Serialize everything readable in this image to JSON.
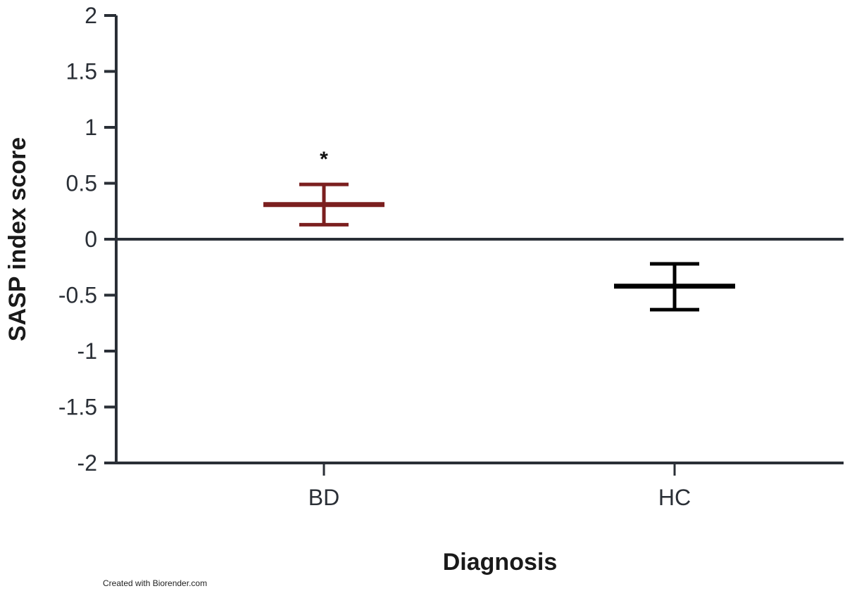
{
  "chart_data": {
    "type": "scatter",
    "subtype": "mean_with_error_bars",
    "title": "",
    "xlabel": "Diagnosis",
    "ylabel": "SASP index score",
    "ylim": [
      -2,
      2
    ],
    "yticks": [
      "2",
      "1.5",
      "1",
      "0.5",
      "0",
      "-0.5",
      "-1",
      "-1.5",
      "-2"
    ],
    "categories": [
      "BD",
      "HC"
    ],
    "series": [
      {
        "name": "BD",
        "mean": 0.31,
        "upper": 0.49,
        "lower": 0.13,
        "color": "#7b1f1f",
        "annotation": "*"
      },
      {
        "name": "HC",
        "mean": -0.42,
        "upper": -0.22,
        "lower": -0.63,
        "color": "#000000",
        "annotation": ""
      }
    ],
    "grid": false,
    "zero_line": true
  },
  "footer": {
    "credit": "Created with Biorender.com"
  }
}
